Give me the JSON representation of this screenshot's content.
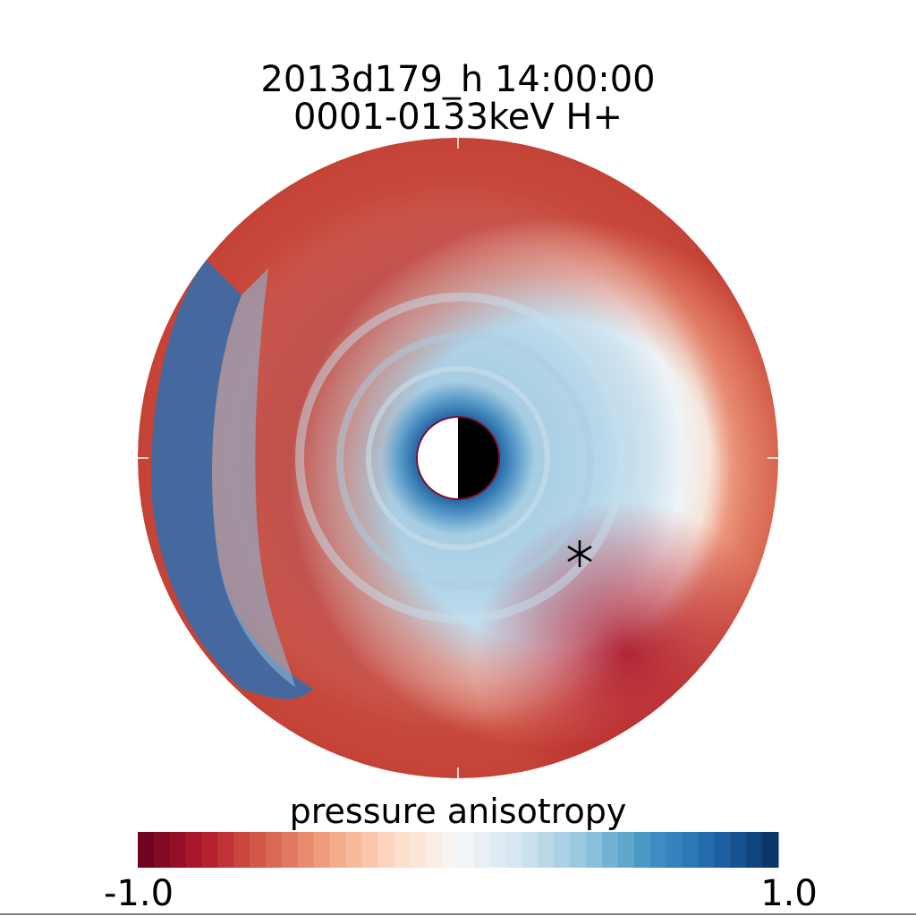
{
  "chart_data": {
    "type": "heatmap",
    "projection": "polar",
    "title_line1": "2013d179_h  14:00:00",
    "title_line2": "0001-0133keV H+",
    "colorbar": {
      "label": "pressure anisotropy",
      "min_label": "-1.0",
      "max_label": "1.0",
      "range": [
        -1.0,
        1.0
      ],
      "colormap": "red-white-blue",
      "stops": [
        "#67001f",
        "#b2182b",
        "#d6604d",
        "#f4a582",
        "#fddbc7",
        "#f7f7f7",
        "#d1e5f0",
        "#92c5de",
        "#4393c3",
        "#2166ac",
        "#053061"
      ]
    },
    "values_description": "dayside at right, nightside at left; anisotropy negative (red) toward dayside outer region, positive (blue) inner ring and nightside edge",
    "regions": [
      {
        "name": "inner ring",
        "value": 0.35
      },
      {
        "name": "near planet edge",
        "value": 0.8
      },
      {
        "name": "dayside outer",
        "value": -0.75
      },
      {
        "name": "dawn-dusk outer (lower right)",
        "value": -0.9
      },
      {
        "name": "nightside outer edge (left)",
        "value": 0.7
      },
      {
        "name": "upper left transition",
        "value": -0.1
      }
    ],
    "planet": {
      "day_color": "#000000",
      "night_color": "#ffffff"
    },
    "marker": {
      "symbol": "asterisk"
    },
    "grid": false
  }
}
